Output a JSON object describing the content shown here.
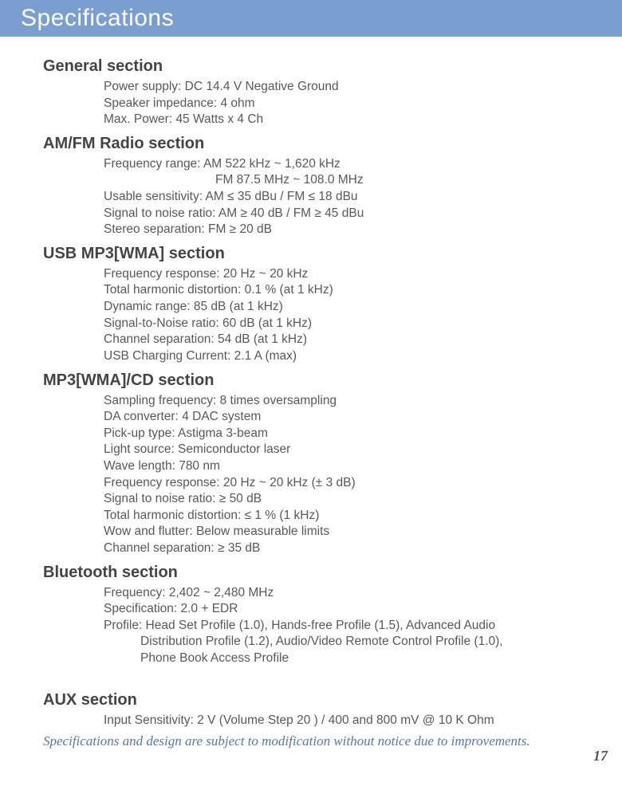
{
  "page": {
    "title": "Specifications",
    "footer_note": "Specifications and design are subject to modification without notice due to improvements.",
    "page_number": "17",
    "colors": {
      "header_bg": "#7a9ed0",
      "header_text": "#ffffff",
      "body_text": "#585858",
      "heading_text": "#444444",
      "footer_text": "#5477b5"
    }
  },
  "sec_general": {
    "heading": "General section",
    "lines": {
      "l0": "Power supply: DC 14.4 V Negative Ground",
      "l1": "Speaker impedance: 4 ohm",
      "l2": "Max. Power: 45 Watts x 4 Ch"
    }
  },
  "sec_radio": {
    "heading": "AM/FM Radio section",
    "lines": {
      "l0": "Frequency range: AM 522 kHz ~ 1,620 kHz",
      "l0b": "FM 87.5 MHz ~ 108.0 MHz",
      "l1": "Usable sensitivity: AM ≤ 35 dBu / FM ≤ 18 dBu",
      "l2": "Signal to noise ratio: AM ≥ 40 dB / FM ≥ 45 dBu",
      "l3": "Stereo separation: FM ≥ 20 dB"
    }
  },
  "sec_usb": {
    "heading": "USB MP3[WMA] section",
    "lines": {
      "l0": "Frequency response: 20 Hz ~ 20 kHz",
      "l1": "Total harmonic distortion: 0.1 % (at 1 kHz)",
      "l2": "Dynamic range: 85 dB (at 1 kHz)",
      "l3": "Signal-to-Noise ratio: 60 dB (at 1 kHz)",
      "l4": "Channel separation: 54 dB (at 1 kHz)",
      "l5": "USB Charging Current: 2.1 A (max)"
    }
  },
  "sec_cd": {
    "heading": "MP3[WMA]/CD section",
    "lines": {
      "l0": "Sampling frequency: 8 times oversampling",
      "l1": "DA converter: 4 DAC system",
      "l2": "Pick-up type: Astigma 3-beam",
      "l3": "Light source: Semiconductor laser",
      "l4": "Wave length: 780 nm",
      "l5": "Frequency response: 20 Hz ~ 20 kHz (± 3 dB)",
      "l6": "Signal to noise ratio: ≥ 50 dB",
      "l7": "Total harmonic distortion: ≤ 1 % (1 kHz)",
      "l8": "Wow and flutter: Below measurable limits",
      "l9": "Channel separation: ≥ 35 dB"
    }
  },
  "sec_bt": {
    "heading": "Bluetooth section",
    "lines": {
      "l0": "Frequency: 2,402 ~ 2,480 MHz",
      "l1": "Specification: 2.0 + EDR",
      "l2": "Profile: Head Set Profile (1.0), Hands-free Profile (1.5), Advanced Audio",
      "l2b": "Distribution Profile (1.2), Audio/Video Remote Control Profile (1.0),",
      "l2c": "Phone Book Access Profile"
    }
  },
  "sec_aux": {
    "heading": "AUX section",
    "lines": {
      "l0": "Input Sensitivity: 2 V (Volume Step 20 ) / 400 and 800 mV @ 10 K Ohm"
    }
  }
}
